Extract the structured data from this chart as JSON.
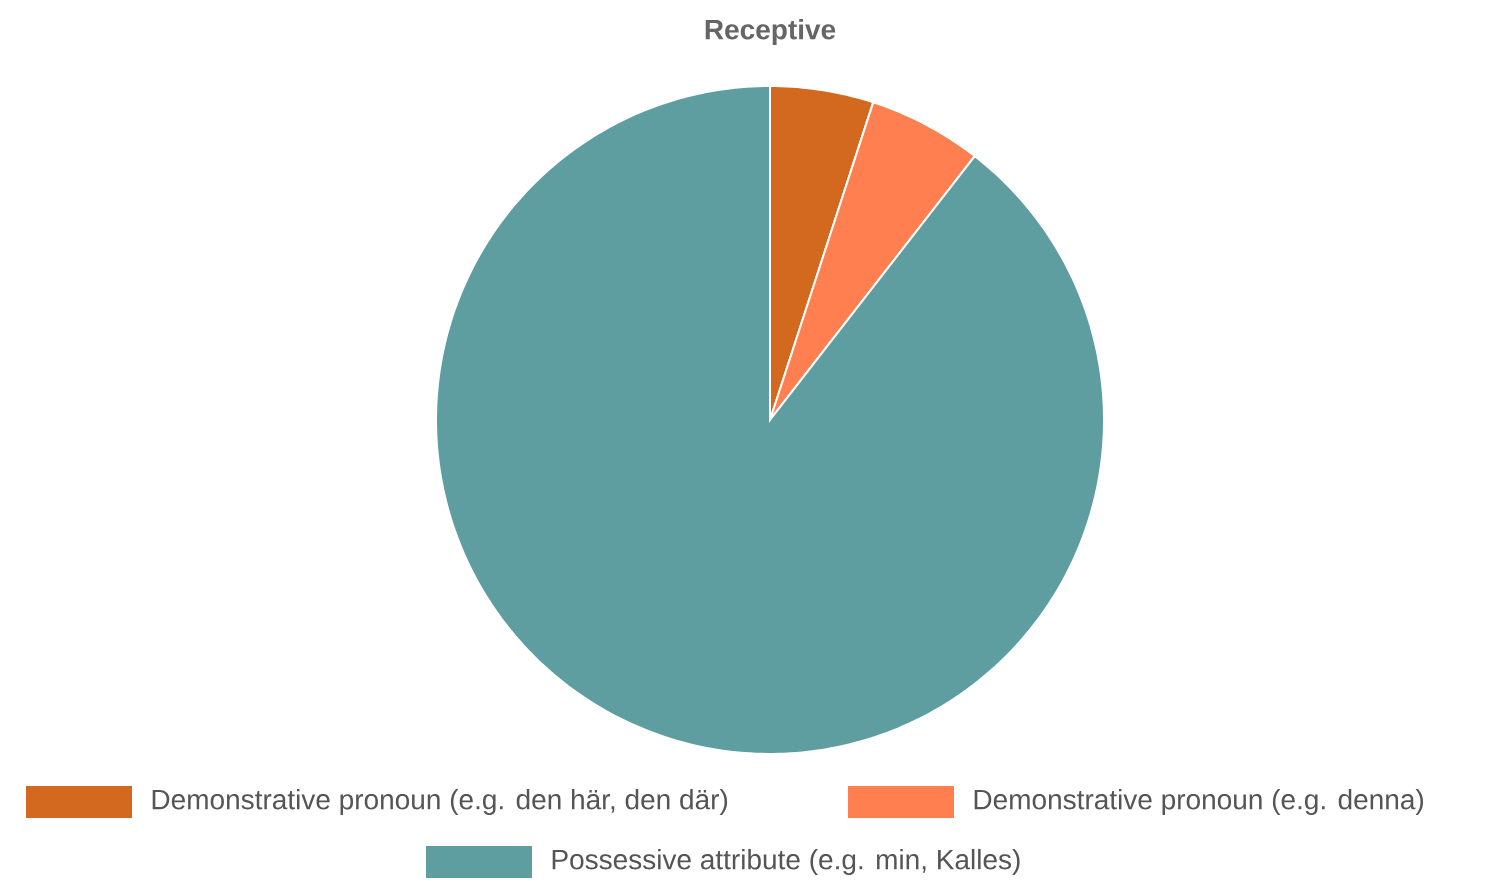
{
  "chart_data": {
    "type": "pie",
    "title": "Receptive",
    "categories": [
      "Demonstrative pronoun (e.g. den här, den där)",
      "Demonstrative pronoun (e.g. denna)",
      "Possessive attribute (e.g. min, Kalles)"
    ],
    "values": [
      5,
      5.5,
      89.5
    ],
    "colors": [
      "#d2691e",
      "#ff7f50",
      "#5f9ea0"
    ],
    "legend": "bottom"
  }
}
